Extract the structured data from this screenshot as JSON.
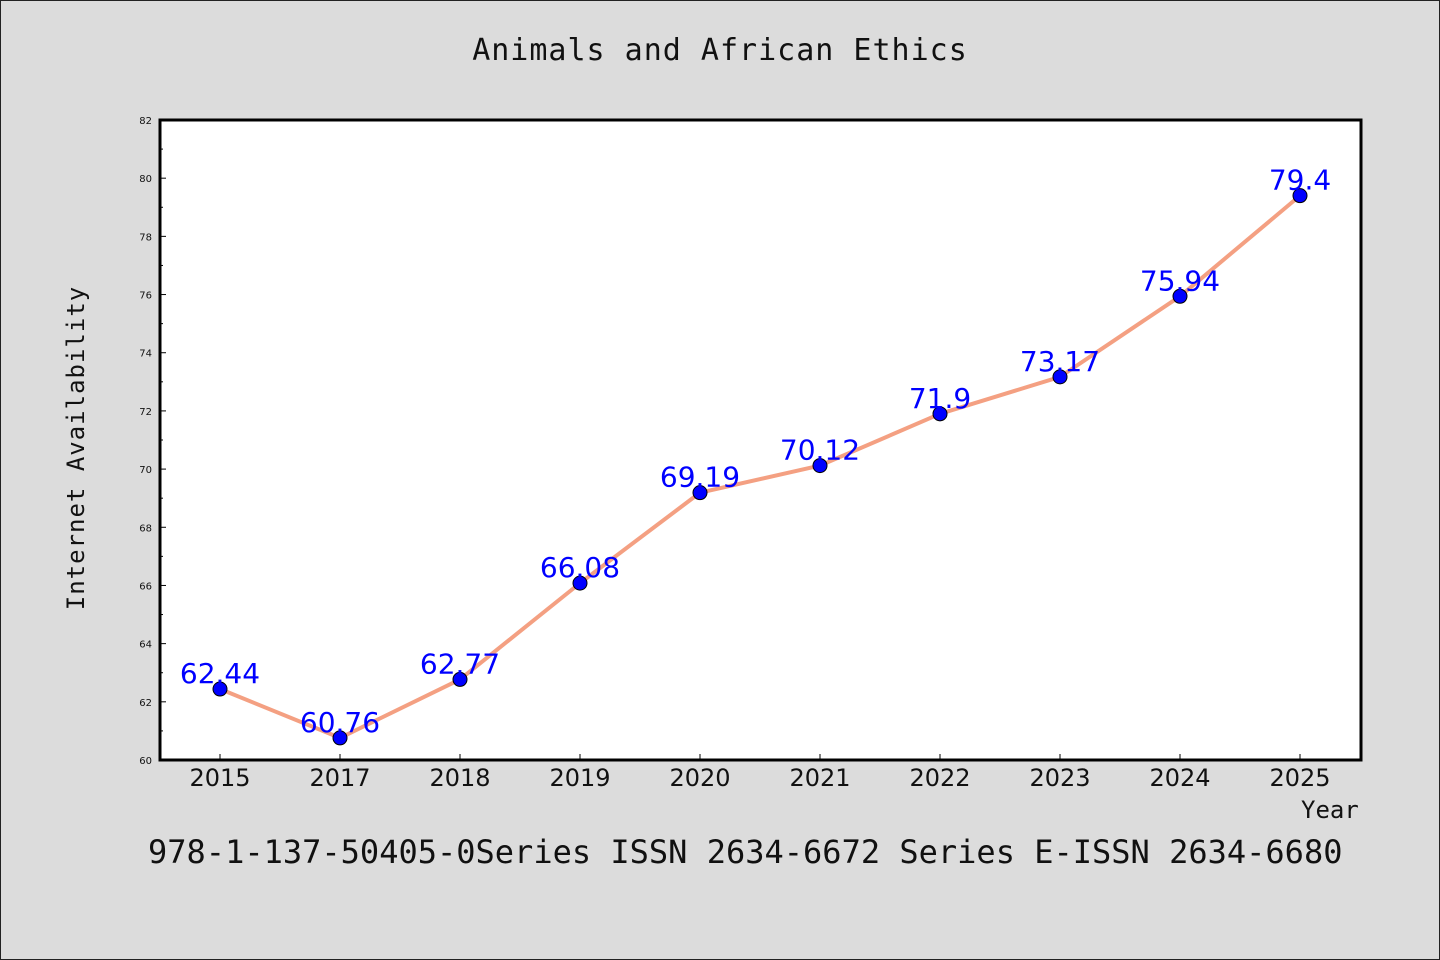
{
  "chart_data": {
    "type": "line",
    "title": "Animals and African Ethics",
    "xlabel": "Year",
    "ylabel": "Internet Availability",
    "categories": [
      "2015",
      "2017",
      "2018",
      "2019",
      "2020",
      "2021",
      "2022",
      "2023",
      "2024",
      "2025"
    ],
    "series": [
      {
        "values": [
          62.44,
          60.76,
          62.77,
          66.08,
          69.19,
          70.12,
          71.9,
          73.17,
          75.94,
          79.4
        ],
        "labels": [
          "62.44",
          "60.76",
          "62.77",
          "66.08",
          "69.19",
          "70.12",
          "71.9",
          "73.17",
          "75.94",
          "79.4"
        ]
      }
    ],
    "ylim": [
      60,
      82
    ],
    "yticks": [
      "60",
      "62",
      "64",
      "66",
      "68",
      "70",
      "72",
      "74",
      "76",
      "78",
      "80",
      "82"
    ],
    "grid": false,
    "legend": "none",
    "colors": {
      "line": "#f4a082",
      "marker": "#0000ff",
      "data_label": "#0000ff",
      "background": "#dcdcdc",
      "plot_background": "#ffffff"
    }
  },
  "footer": {
    "text": "978-1-137-50405-0Series ISSN 2634-6672 Series E-ISSN 2634-6680"
  }
}
